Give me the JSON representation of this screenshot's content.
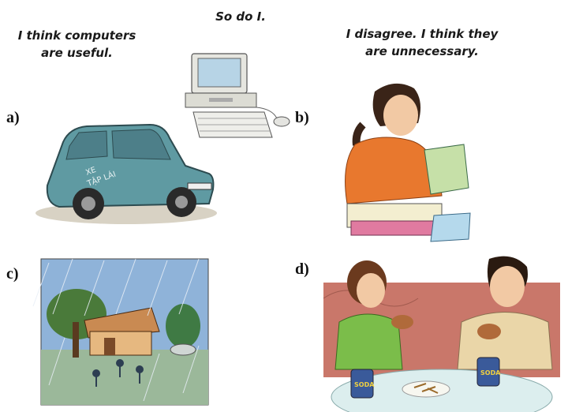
{
  "speech": {
    "computers_useful_line1": "I think computers",
    "computers_useful_line2": "are useful.",
    "so_do_i": "So do I.",
    "disagree_line1": "I disagree. I think they",
    "disagree_line2": "are unnecessary."
  },
  "labels": {
    "a": "a)",
    "b": "b)",
    "c": "c)",
    "d": "d)"
  },
  "car_text": {
    "line1": "XE",
    "line2": "TẬP LÁI"
  },
  "soda_label": "SODA",
  "colors": {
    "car_body": "#5f9aa2",
    "shirt_orange": "#e8782e",
    "sky_blue": "#8fb3d9",
    "wall_rose": "#c9776a",
    "shirt_green": "#7bbd4a",
    "shirt_beige": "#ead6a8"
  }
}
